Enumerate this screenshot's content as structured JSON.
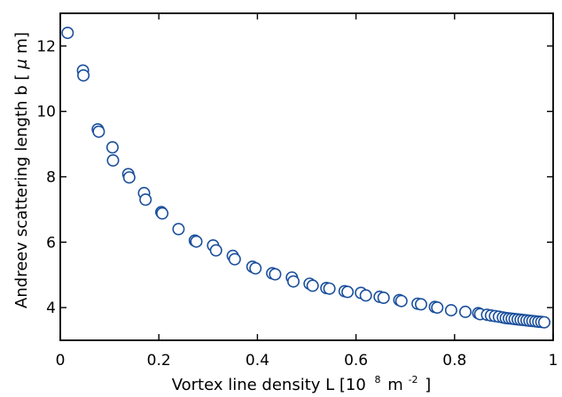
{
  "chart_data": {
    "type": "scatter",
    "xlabel": {
      "main": "Vortex line density L [10",
      "exp1": "8",
      "unit": "m",
      "exp2": "-2",
      "close": "]"
    },
    "ylabel": {
      "main": "Andreev scattering length b [",
      "mu": "μ",
      "rest": "m]"
    },
    "xlim": [
      0,
      1
    ],
    "ylim": [
      3,
      13
    ],
    "x_ticks": [
      {
        "value": 0,
        "label": "0"
      },
      {
        "value": 0.2,
        "label": "0.2"
      },
      {
        "value": 0.4,
        "label": "0.4"
      },
      {
        "value": 0.6,
        "label": "0.6"
      },
      {
        "value": 0.8,
        "label": "0.8"
      },
      {
        "value": 1,
        "label": "1"
      }
    ],
    "y_ticks": [
      {
        "value": 4,
        "label": "4"
      },
      {
        "value": 6,
        "label": "6"
      },
      {
        "value": 8,
        "label": "8"
      },
      {
        "value": 10,
        "label": "10"
      },
      {
        "value": 12,
        "label": "12"
      }
    ],
    "grid": false,
    "marker": {
      "shape": "open-circle",
      "color": "#1a4f9c"
    },
    "points": [
      [
        0.015,
        12.4
      ],
      [
        0.046,
        11.25
      ],
      [
        0.047,
        11.1
      ],
      [
        0.076,
        9.45
      ],
      [
        0.078,
        9.38
      ],
      [
        0.106,
        8.9
      ],
      [
        0.107,
        8.5
      ],
      [
        0.138,
        8.08
      ],
      [
        0.14,
        7.98
      ],
      [
        0.17,
        7.5
      ],
      [
        0.173,
        7.3
      ],
      [
        0.205,
        6.92
      ],
      [
        0.207,
        6.88
      ],
      [
        0.24,
        6.4
      ],
      [
        0.273,
        6.05
      ],
      [
        0.276,
        6.02
      ],
      [
        0.31,
        5.9
      ],
      [
        0.316,
        5.75
      ],
      [
        0.35,
        5.58
      ],
      [
        0.354,
        5.48
      ],
      [
        0.39,
        5.25
      ],
      [
        0.396,
        5.2
      ],
      [
        0.43,
        5.05
      ],
      [
        0.436,
        5.02
      ],
      [
        0.47,
        4.92
      ],
      [
        0.473,
        4.8
      ],
      [
        0.506,
        4.73
      ],
      [
        0.512,
        4.67
      ],
      [
        0.54,
        4.6
      ],
      [
        0.546,
        4.58
      ],
      [
        0.577,
        4.5
      ],
      [
        0.583,
        4.48
      ],
      [
        0.61,
        4.45
      ],
      [
        0.62,
        4.37
      ],
      [
        0.648,
        4.33
      ],
      [
        0.656,
        4.3
      ],
      [
        0.688,
        4.23
      ],
      [
        0.692,
        4.2
      ],
      [
        0.725,
        4.12
      ],
      [
        0.732,
        4.1
      ],
      [
        0.76,
        4.02
      ],
      [
        0.765,
        4.0
      ],
      [
        0.793,
        3.92
      ],
      [
        0.822,
        3.87
      ],
      [
        0.848,
        3.83
      ],
      [
        0.852,
        3.8
      ],
      [
        0.866,
        3.78
      ],
      [
        0.874,
        3.76
      ],
      [
        0.882,
        3.74
      ],
      [
        0.89,
        3.72
      ],
      [
        0.898,
        3.7
      ],
      [
        0.904,
        3.68
      ],
      [
        0.91,
        3.67
      ],
      [
        0.916,
        3.66
      ],
      [
        0.922,
        3.65
      ],
      [
        0.928,
        3.64
      ],
      [
        0.934,
        3.63
      ],
      [
        0.94,
        3.62
      ],
      [
        0.946,
        3.61
      ],
      [
        0.952,
        3.6
      ],
      [
        0.958,
        3.59
      ],
      [
        0.964,
        3.58
      ],
      [
        0.97,
        3.57
      ],
      [
        0.976,
        3.56
      ],
      [
        0.982,
        3.55
      ]
    ]
  }
}
